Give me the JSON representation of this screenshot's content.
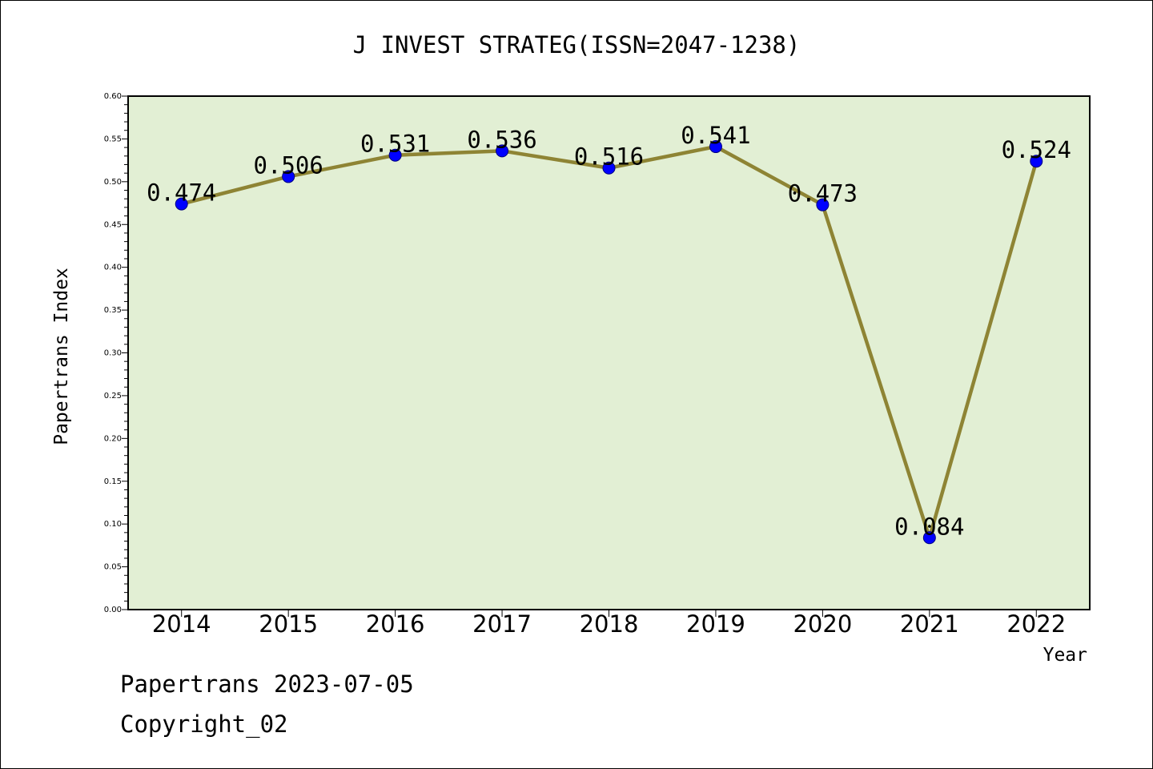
{
  "chart_data": {
    "type": "line",
    "title": "J INVEST STRATEG(ISSN=2047-1238)",
    "xlabel": "Year",
    "ylabel": "Papertrans Index",
    "categories": [
      "2014",
      "2015",
      "2016",
      "2017",
      "2018",
      "2019",
      "2020",
      "2021",
      "2022"
    ],
    "series": [
      {
        "values": [
          0.474,
          0.506,
          0.531,
          0.536,
          0.516,
          0.541,
          0.473,
          0.084,
          0.524
        ],
        "labels": [
          "0.474",
          "0.506",
          "0.531",
          "0.536",
          "0.516",
          "0.541",
          "0.473",
          "0.084",
          "0.524"
        ]
      }
    ],
    "ylim": [
      0,
      0.6
    ],
    "yticks": [
      "0.00",
      "0.05",
      "0.10",
      "0.15",
      "0.20",
      "0.25",
      "0.30",
      "0.35",
      "0.40",
      "0.45",
      "0.50",
      "0.55",
      "0.60"
    ],
    "grid": false,
    "colors": {
      "plot_background": "#e2efd4",
      "line": "#8e8434",
      "marker": "#0000ff"
    }
  },
  "footer": {
    "line1": "Papertrans 2023-07-05",
    "line2": "Copyright_02"
  }
}
